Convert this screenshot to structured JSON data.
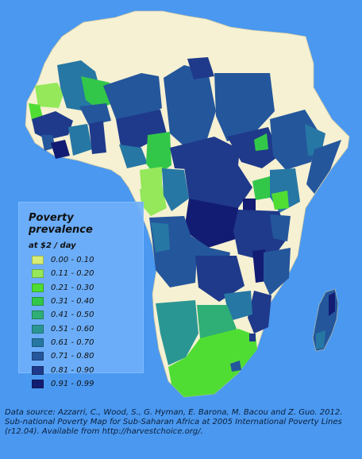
{
  "legend": {
    "title": "Poverty prevalence",
    "subtitle": "at $2 / day",
    "classes": [
      {
        "label": "0.00 - 0.10",
        "color": "#d6ee74"
      },
      {
        "label": "0.11 - 0.20",
        "color": "#94e85a"
      },
      {
        "label": "0.21 - 0.30",
        "color": "#50dd33"
      },
      {
        "label": "0.31 - 0.40",
        "color": "#33c74a"
      },
      {
        "label": "0.41 - 0.50",
        "color": "#2fae76"
      },
      {
        "label": "0.51 - 0.60",
        "color": "#2a9694"
      },
      {
        "label": "0.61 - 0.70",
        "color": "#2677a4"
      },
      {
        "label": "0.71 - 0.80",
        "color": "#24569c"
      },
      {
        "label": "0.81 - 0.90",
        "color": "#1f3a8a"
      },
      {
        "label": "0.91 - 0.99",
        "color": "#131c73"
      }
    ]
  },
  "source_text": "Data source: Azzarri, C., Wood, S., G. Hyman, E. Barona, M. Bacou and Z. Guo. 2012. Sub-national Poverty Map for Sub-Saharan Africa at 2005 International Poverty Lines (r12.04). Available from http://harvestchoice.org/.",
  "colors": {
    "ocean": "#4a98f0",
    "no_data_land": "#f6f1d3",
    "border": "#c9c4a4"
  }
}
